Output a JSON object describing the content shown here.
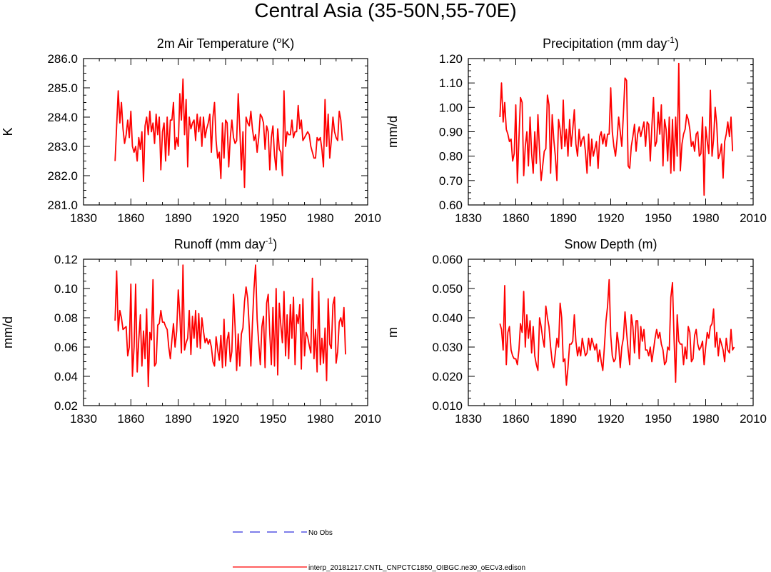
{
  "title": "Central Asia (35-50N,55-70E)",
  "colors": {
    "series": "#ff0000",
    "obs": "#3333dd",
    "axis": "#000000"
  },
  "legend": [
    {
      "label": "No Obs",
      "color": "#3333dd",
      "style": "dashed"
    },
    {
      "label": "interp_20181217.CNTL_CNPCTC1850_OIBGC.ne30_oECv3.edison",
      "color": "#ff0000",
      "style": "solid"
    }
  ],
  "chart_data": [
    {
      "type": "line",
      "title": "2m Air Temperature",
      "title_units_pre": " (",
      "title_units_sup": "o",
      "title_units_post": "K)",
      "xlabel": "",
      "ylabel": "K",
      "xlim": [
        1830,
        2010
      ],
      "ylim": [
        281.0,
        286.0
      ],
      "xticks": [
        1830,
        1860,
        1890,
        1920,
        1950,
        1980,
        2010
      ],
      "yticks": [
        "281.0",
        "282.0",
        "283.0",
        "284.0",
        "285.0",
        "286.0"
      ],
      "x_start": 1850,
      "series": [
        {
          "name": "interp_20181217.CNTL_CNPCTC1850_OIBGC.ne30_oECv3.edison",
          "values": [
            282.5,
            283.7,
            284.9,
            283.8,
            284.5,
            283.6,
            283.1,
            283.4,
            283.9,
            283.3,
            284.2,
            283.0,
            282.8,
            283.0,
            282.5,
            283.3,
            282.9,
            283.5,
            281.8,
            283.7,
            284.0,
            283.4,
            284.2,
            283.5,
            283.8,
            283.1,
            284.1,
            283.4,
            284.0,
            282.2,
            283.5,
            283.8,
            282.5,
            284.0,
            282.7,
            283.9,
            283.9,
            284.5,
            282.9,
            283.3,
            283.0,
            284.8,
            283.9,
            285.3,
            283.4,
            284.6,
            282.3,
            284.0,
            283.6,
            283.8,
            283.9,
            283.2,
            284.1,
            283.5,
            284.0,
            283.0,
            284.0,
            283.3,
            283.6,
            283.8,
            284.1,
            282.8,
            284.0,
            284.5,
            283.2,
            282.6,
            282.8,
            281.9,
            283.8,
            282.6,
            283.9,
            283.8,
            282.3,
            283.3,
            283.9,
            283.3,
            283.1,
            283.2,
            284.8,
            283.6,
            282.2,
            283.5,
            281.6,
            284.0,
            283.8,
            283.7,
            284.2,
            283.6,
            283.2,
            283.4,
            282.8,
            283.3,
            284.1,
            284.0,
            283.8,
            282.9,
            283.7,
            283.5,
            282.2,
            283.3,
            283.7,
            282.7,
            282.2,
            283.6,
            282.9,
            282.8,
            282.0,
            284.9,
            283.0,
            283.5,
            283.4,
            283.4,
            283.9,
            283.3,
            283.5,
            283.5,
            284.4,
            283.6,
            283.9,
            283.2,
            283.3,
            283.4,
            283.5,
            283.4,
            283.0,
            282.8,
            282.6,
            282.6,
            283.3,
            283.2,
            283.3,
            282.9,
            282.3,
            284.6,
            283.0,
            284.1,
            282.6,
            283.2,
            284.0,
            283.5,
            283.3,
            283.2,
            284.2,
            283.9,
            283.2
          ]
        }
      ]
    },
    {
      "type": "line",
      "title": "Precipitation",
      "title_units_pre": " (mm day",
      "title_units_sup": "-1",
      "title_units_post": ")",
      "xlabel": "",
      "ylabel": "mm/d",
      "xlim": [
        1830,
        2010
      ],
      "ylim": [
        0.6,
        1.2
      ],
      "xticks": [
        1830,
        1860,
        1890,
        1920,
        1950,
        1980,
        2010
      ],
      "yticks": [
        "0.60",
        "0.70",
        "0.80",
        "0.90",
        "1.00",
        "1.10",
        "1.20"
      ],
      "x_start": 1850,
      "series": [
        {
          "name": "interp_20181217.CNTL_CNPCTC1850_OIBGC.ne30_oECv3.edison",
          "values": [
            0.96,
            1.1,
            0.94,
            1.02,
            0.91,
            0.89,
            0.86,
            0.87,
            0.78,
            0.81,
            1.01,
            0.69,
            0.87,
            1.04,
            1.02,
            0.72,
            0.84,
            0.9,
            0.76,
            0.96,
            0.81,
            0.73,
            0.9,
            0.77,
            0.97,
            0.82,
            0.7,
            0.76,
            0.82,
            0.83,
            1.05,
            1.01,
            0.73,
            0.97,
            0.87,
            0.8,
            0.7,
            0.95,
            0.91,
            0.83,
            1.03,
            0.84,
            0.91,
            0.8,
            0.95,
            0.84,
            0.91,
            0.99,
            0.85,
            0.8,
            0.91,
            0.84,
            0.87,
            0.88,
            0.82,
            0.73,
            0.89,
            0.76,
            0.87,
            0.8,
            0.83,
            0.86,
            0.75,
            0.88,
            0.9,
            0.85,
            0.89,
            0.84,
            0.89,
            0.89,
            1.08,
            0.9,
            0.84,
            0.8,
            0.87,
            0.96,
            0.9,
            0.84,
            0.97,
            1.12,
            1.11,
            0.76,
            0.75,
            0.84,
            0.88,
            0.93,
            0.82,
            0.89,
            0.92,
            0.88,
            0.91,
            0.94,
            0.84,
            0.94,
            0.93,
            0.78,
            0.92,
            1.04,
            0.84,
            0.86,
            0.98,
            0.89,
            1.01,
            0.76,
            0.95,
            0.91,
            0.78,
            0.96,
            0.73,
            0.95,
            0.74,
            0.96,
            0.8,
            1.18,
            0.74,
            0.85,
            0.89,
            0.91,
            0.97,
            0.95,
            0.91,
            0.84,
            0.86,
            0.82,
            0.89,
            0.9,
            0.8,
            0.81,
            0.96,
            0.64,
            0.92,
            0.86,
            0.81,
            1.07,
            0.8,
            0.87,
            1.0,
            0.93,
            0.79,
            0.81,
            0.85,
            0.71,
            0.86,
            0.89,
            0.94,
            0.88,
            0.96,
            0.82
          ]
        }
      ]
    },
    {
      "type": "line",
      "title": "Runoff",
      "title_units_pre": " (mm day",
      "title_units_sup": "-1",
      "title_units_post": ")",
      "xlabel": "",
      "ylabel": "mm/d",
      "xlim": [
        1830,
        2010
      ],
      "ylim": [
        0.02,
        0.12
      ],
      "xticks": [
        1830,
        1860,
        1890,
        1920,
        1950,
        1980,
        2010
      ],
      "yticks": [
        "0.02",
        "0.04",
        "0.06",
        "0.08",
        "0.10",
        "0.12"
      ],
      "x_start": 1850,
      "series": [
        {
          "name": "interp_20181217.CNTL_CNPCTC1850_OIBGC.ne30_oECv3.edison",
          "values": [
            0.078,
            0.112,
            0.071,
            0.085,
            0.08,
            0.072,
            0.073,
            0.074,
            0.054,
            0.06,
            0.103,
            0.04,
            0.06,
            0.103,
            0.043,
            0.065,
            0.082,
            0.047,
            0.071,
            0.052,
            0.086,
            0.033,
            0.07,
            0.065,
            0.106,
            0.047,
            0.049,
            0.075,
            0.076,
            0.085,
            0.077,
            0.077,
            0.074,
            0.072,
            0.06,
            0.052,
            0.065,
            0.076,
            0.06,
            0.071,
            0.099,
            0.082,
            0.056,
            0.116,
            0.058,
            0.063,
            0.066,
            0.085,
            0.055,
            0.081,
            0.066,
            0.085,
            0.06,
            0.083,
            0.059,
            0.08,
            0.071,
            0.063,
            0.066,
            0.062,
            0.065,
            0.06,
            0.05,
            0.047,
            0.067,
            0.058,
            0.051,
            0.068,
            0.046,
            0.079,
            0.047,
            0.065,
            0.07,
            0.05,
            0.057,
            0.096,
            0.074,
            0.044,
            0.069,
            0.047,
            0.069,
            0.073,
            0.091,
            0.101,
            0.093,
            0.073,
            0.047,
            0.076,
            0.1,
            0.116,
            0.079,
            0.063,
            0.048,
            0.074,
            0.081,
            0.046,
            0.09,
            0.096,
            0.069,
            0.048,
            0.087,
            0.047,
            0.1,
            0.041,
            0.09,
            0.075,
            0.063,
            0.098,
            0.054,
            0.082,
            0.052,
            0.089,
            0.066,
            0.094,
            0.048,
            0.082,
            0.076,
            0.089,
            0.045,
            0.093,
            0.054,
            0.07,
            0.067,
            0.061,
            0.056,
            0.107,
            0.052,
            0.072,
            0.043,
            0.098,
            0.048,
            0.066,
            0.049,
            0.073,
            0.037,
            0.093,
            0.062,
            0.059,
            0.089,
            0.094,
            0.049,
            0.057,
            0.077,
            0.08,
            0.074,
            0.087,
            0.055
          ]
        }
      ]
    },
    {
      "type": "line",
      "title": "Snow Depth",
      "title_units_pre": " (m)",
      "title_units_sup": "",
      "title_units_post": "",
      "xlabel": "",
      "ylabel": "m",
      "xlim": [
        1830,
        2010
      ],
      "ylim": [
        0.01,
        0.06
      ],
      "xticks": [
        1830,
        1860,
        1890,
        1920,
        1950,
        1980,
        2010
      ],
      "yticks": [
        "0.010",
        "0.020",
        "0.030",
        "0.040",
        "0.050",
        "0.060"
      ],
      "x_start": 1850,
      "series": [
        {
          "name": "interp_20181217.CNTL_CNPCTC1850_OIBGC.ne30_oECv3.edison",
          "values": [
            0.038,
            0.036,
            0.029,
            0.051,
            0.024,
            0.035,
            0.037,
            0.029,
            0.027,
            0.026,
            0.026,
            0.024,
            0.029,
            0.038,
            0.035,
            0.049,
            0.03,
            0.041,
            0.033,
            0.039,
            0.028,
            0.037,
            0.027,
            0.024,
            0.022,
            0.04,
            0.037,
            0.033,
            0.03,
            0.044,
            0.04,
            0.037,
            0.03,
            0.025,
            0.023,
            0.028,
            0.033,
            0.03,
            0.045,
            0.04,
            0.025,
            0.026,
            0.017,
            0.023,
            0.031,
            0.031,
            0.032,
            0.041,
            0.032,
            0.027,
            0.03,
            0.027,
            0.033,
            0.03,
            0.027,
            0.028,
            0.033,
            0.029,
            0.033,
            0.031,
            0.029,
            0.031,
            0.025,
            0.029,
            0.025,
            0.022,
            0.03,
            0.039,
            0.044,
            0.053,
            0.034,
            0.027,
            0.025,
            0.026,
            0.035,
            0.031,
            0.023,
            0.03,
            0.033,
            0.042,
            0.035,
            0.029,
            0.024,
            0.041,
            0.037,
            0.028,
            0.039,
            0.039,
            0.026,
            0.037,
            0.032,
            0.036,
            0.029,
            0.029,
            0.027,
            0.03,
            0.025,
            0.029,
            0.033,
            0.036,
            0.033,
            0.035,
            0.031,
            0.029,
            0.024,
            0.025,
            0.03,
            0.029,
            0.047,
            0.052,
            0.033,
            0.018,
            0.041,
            0.032,
            0.031,
            0.031,
            0.024,
            0.03,
            0.026,
            0.037,
            0.035,
            0.025,
            0.026,
            0.034,
            0.036,
            0.031,
            0.029,
            0.03,
            0.032,
            0.024,
            0.03,
            0.035,
            0.033,
            0.037,
            0.038,
            0.043,
            0.03,
            0.035,
            0.027,
            0.033,
            0.031,
            0.029,
            0.025,
            0.033,
            0.029,
            0.028,
            0.036,
            0.029,
            0.03
          ]
        }
      ]
    }
  ]
}
